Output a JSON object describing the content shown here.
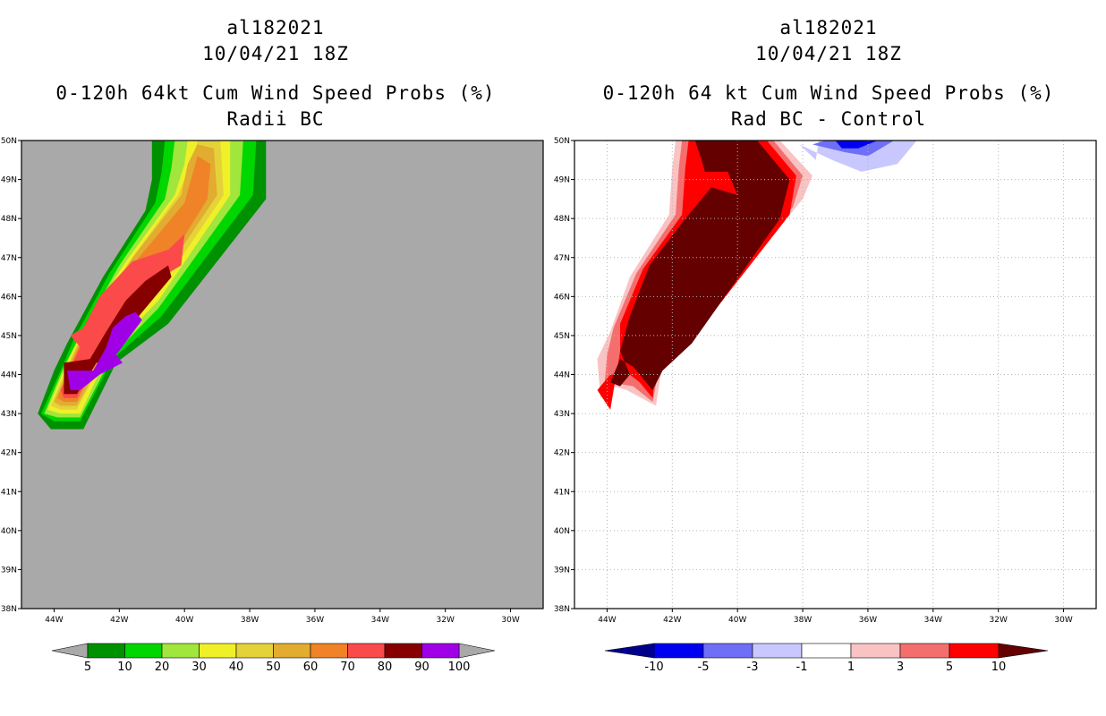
{
  "panels": [
    {
      "title_lines": [
        "al182021",
        "10/04/21 18Z",
        "0-120h 64kt Cum Wind Speed Probs (%)",
        "Radii BC"
      ],
      "background": "#a9a9a9",
      "grid": false,
      "colorbar": {
        "labels": [
          "5",
          "10",
          "20",
          "30",
          "40",
          "50",
          "60",
          "70",
          "80",
          "90",
          "100"
        ],
        "colors": [
          "#009100",
          "#00d600",
          "#a1e63c",
          "#f0f028",
          "#e5d23a",
          "#e1ac2f",
          "#f08228",
          "#fb4a4a",
          "#860000",
          "#a000e6"
        ],
        "left_triangle": "#a9a9a9",
        "right_triangle": "#a9a9a9"
      }
    },
    {
      "title_lines": [
        "al182021",
        "10/04/21 18Z",
        "0-120h 64 kt Cum Wind Speed Probs (%)",
        "Rad BC - Control"
      ],
      "background": "#ffffff",
      "grid": true,
      "colorbar": {
        "labels": [
          "-10",
          "-5",
          "-3",
          "-1",
          "1",
          "3",
          "5",
          "10"
        ],
        "colors": [
          "#0000f0",
          "#6e6ef6",
          "#c8c8ff",
          "#ffffff",
          "#fac3c3",
          "#f56e6e",
          "#ff0000"
        ],
        "left_triangle": "#00008c",
        "right_triangle": "#640000"
      }
    }
  ],
  "chart_data": [
    {
      "type": "contour-map",
      "title": "0-120h 64kt Cum Wind Speed Probs (%)",
      "subtitle": "Radii BC",
      "storm": "al182021",
      "datetime": "10/04/21 18Z",
      "x_ticks": [
        -44,
        -42,
        -40,
        -38,
        -36,
        -34,
        -32,
        -30
      ],
      "x_tick_labels": [
        "44W",
        "42W",
        "40W",
        "38W",
        "36W",
        "34W",
        "32W",
        "30W"
      ],
      "y_ticks": [
        38,
        39,
        40,
        41,
        42,
        43,
        44,
        45,
        46,
        47,
        48,
        49,
        50
      ],
      "y_tick_labels": [
        "38N",
        "39N",
        "40N",
        "41N",
        "42N",
        "43N",
        "44N",
        "45N",
        "46N",
        "47N",
        "48N",
        "49N",
        "50N"
      ],
      "xlim": [
        -45,
        -29
      ],
      "ylim": [
        38,
        50
      ],
      "levels": [
        5,
        10,
        20,
        30,
        40,
        50,
        60,
        70,
        80,
        90,
        100
      ],
      "contours": [
        {
          "level": 5,
          "polygon": [
            [
              -41,
              50
            ],
            [
              -37.5,
              50
            ],
            [
              -37.5,
              48.5
            ],
            [
              -40.5,
              45.3
            ],
            [
              -42.1,
              44.3
            ],
            [
              -43.1,
              42.6
            ],
            [
              -44.1,
              42.6
            ],
            [
              -44.5,
              43
            ],
            [
              -44,
              44.1
            ],
            [
              -43.6,
              44.8
            ],
            [
              -42.5,
              46.5
            ],
            [
              -41.2,
              48.2
            ],
            [
              -41,
              49
            ]
          ]
        },
        {
          "level": 10,
          "polygon": [
            [
              -40.6,
              50
            ],
            [
              -37.8,
              50
            ],
            [
              -37.9,
              48.6
            ],
            [
              -40.7,
              45.5
            ],
            [
              -42.2,
              44.4
            ],
            [
              -43.2,
              42.8
            ],
            [
              -44,
              42.8
            ],
            [
              -44.4,
              43
            ],
            [
              -43.8,
              44.1
            ],
            [
              -43.4,
              44.9
            ],
            [
              -42.3,
              46.6
            ],
            [
              -40.9,
              48.4
            ],
            [
              -40.7,
              49.2
            ]
          ]
        },
        {
          "level": 20,
          "polygon": [
            [
              -40.3,
              50
            ],
            [
              -38.2,
              50
            ],
            [
              -38.3,
              48.6
            ],
            [
              -40.8,
              45.7
            ],
            [
              -42.2,
              44.5
            ],
            [
              -43.2,
              42.9
            ],
            [
              -43.9,
              42.9
            ],
            [
              -44.3,
              43
            ],
            [
              -43.7,
              44.2
            ],
            [
              -43.2,
              45
            ],
            [
              -42,
              46.8
            ],
            [
              -40.6,
              48.5
            ],
            [
              -40.4,
              49.3
            ]
          ]
        },
        {
          "level": 30,
          "polygon": [
            [
              -39.9,
              50
            ],
            [
              -38.6,
              50
            ],
            [
              -38.6,
              48.6
            ],
            [
              -40.8,
              45.9
            ],
            [
              -42.3,
              44.6
            ],
            [
              -43.2,
              43
            ],
            [
              -43.8,
              43
            ],
            [
              -44.2,
              43.1
            ],
            [
              -43.6,
              44.3
            ],
            [
              -43.1,
              45.2
            ],
            [
              -41.8,
              46.9
            ],
            [
              -40.3,
              48.6
            ],
            [
              -40,
              49.4
            ]
          ]
        },
        {
          "level": 40,
          "polygon": [
            [
              -39.6,
              50
            ],
            [
              -38.9,
              50
            ],
            [
              -38.8,
              48.6
            ],
            [
              -40.9,
              46
            ],
            [
              -42.3,
              44.7
            ],
            [
              -43.3,
              43.1
            ],
            [
              -43.8,
              43.1
            ],
            [
              -44.1,
              43.2
            ],
            [
              -43.5,
              44.4
            ],
            [
              -43,
              45.3
            ],
            [
              -41.6,
              47
            ],
            [
              -40.2,
              48.6
            ],
            [
              -39.8,
              49.4
            ]
          ]
        },
        {
          "level": 50,
          "polygon": [
            [
              -39.6,
              49.9
            ],
            [
              -39.1,
              49.8
            ],
            [
              -39,
              48.6
            ],
            [
              -41,
              46.1
            ],
            [
              -42.3,
              44.7
            ],
            [
              -43.3,
              43.2
            ],
            [
              -43.8,
              43.2
            ],
            [
              -44,
              43.3
            ],
            [
              -43.4,
              44.5
            ],
            [
              -42.9,
              45.4
            ],
            [
              -41.5,
              47.1
            ],
            [
              -40.1,
              48.6
            ],
            [
              -39.9,
              49.4
            ]
          ]
        },
        {
          "level": 60,
          "polygon": [
            [
              -39.6,
              49.6
            ],
            [
              -39.2,
              49.4
            ],
            [
              -39.3,
              48.5
            ],
            [
              -41,
              46.2
            ],
            [
              -42.4,
              44.8
            ],
            [
              -43.3,
              43.3
            ],
            [
              -43.7,
              43.3
            ],
            [
              -43.9,
              43.4
            ],
            [
              -43.3,
              44.6
            ],
            [
              -42.8,
              45.6
            ],
            [
              -41.4,
              47
            ],
            [
              -40,
              48.4
            ]
          ]
        },
        {
          "level": 70,
          "polygon": [
            [
              -40,
              47.6
            ],
            [
              -40.1,
              46.8
            ],
            [
              -40.9,
              46.4
            ],
            [
              -42.4,
              44.8
            ],
            [
              -43.3,
              43.4
            ],
            [
              -43.7,
              43.4
            ],
            [
              -43.8,
              43.6
            ],
            [
              -43.2,
              44.7
            ],
            [
              -43.5,
              45
            ],
            [
              -43.1,
              45.2
            ],
            [
              -42.6,
              46
            ],
            [
              -41.6,
              46.9
            ],
            [
              -40.5,
              47.2
            ]
          ]
        },
        {
          "level": 80,
          "polygon": [
            [
              -40.5,
              46.8
            ],
            [
              -40.4,
              46.5
            ],
            [
              -41.4,
              45.5
            ],
            [
              -42.2,
              44.6
            ],
            [
              -42,
              44.4
            ],
            [
              -42.7,
              44.3
            ],
            [
              -43.3,
              43.5
            ],
            [
              -43.7,
              43.5
            ],
            [
              -43.7,
              44.3
            ],
            [
              -42.9,
              44.4
            ],
            [
              -42.4,
              45.1
            ],
            [
              -41.8,
              45.9
            ],
            [
              -41.2,
              46.4
            ]
          ]
        },
        {
          "level": 90,
          "polygon": [
            [
              -41.5,
              45.6
            ],
            [
              -41.3,
              45.4
            ],
            [
              -42.1,
              44.5
            ],
            [
              -41.9,
              44.3
            ],
            [
              -42.6,
              44
            ],
            [
              -42.9,
              43.8
            ],
            [
              -43.2,
              43.6
            ],
            [
              -43.5,
              43.6
            ],
            [
              -43.6,
              44.1
            ],
            [
              -42.8,
              44.1
            ],
            [
              -42.4,
              44.7
            ],
            [
              -42.2,
              45.2
            ],
            [
              -41.8,
              45.5
            ]
          ]
        }
      ]
    },
    {
      "type": "contour-map",
      "title": "0-120h 64 kt Cum Wind Speed Probs (%)",
      "subtitle": "Rad BC - Control",
      "storm": "al182021",
      "datetime": "10/04/21 18Z",
      "x_ticks": [
        -44,
        -42,
        -40,
        -38,
        -36,
        -34,
        -32,
        -30
      ],
      "x_tick_labels": [
        "44W",
        "42W",
        "40W",
        "38W",
        "36W",
        "34W",
        "32W",
        "30W"
      ],
      "y_ticks": [
        38,
        39,
        40,
        41,
        42,
        43,
        44,
        45,
        46,
        47,
        48,
        49,
        50
      ],
      "y_tick_labels": [
        "38N",
        "39N",
        "40N",
        "41N",
        "42N",
        "43N",
        "44N",
        "45N",
        "46N",
        "47N",
        "48N",
        "49N",
        "50N"
      ],
      "xlim": [
        -45,
        -29
      ],
      "ylim": [
        38,
        50
      ],
      "levels": [
        -10,
        -5,
        -3,
        -1,
        1,
        3,
        5,
        10
      ],
      "contours": [
        {
          "level": 1,
          "polygon": [
            [
              -41.9,
              50
            ],
            [
              -38.7,
              50
            ],
            [
              -37.7,
              49.1
            ],
            [
              -38,
              48.5
            ],
            [
              -41.1,
              45.4
            ],
            [
              -42.3,
              44.3
            ],
            [
              -42.5,
              43.2
            ],
            [
              -43.4,
              43.6
            ],
            [
              -43.8,
              43.7
            ],
            [
              -44.2,
              43.4
            ],
            [
              -44.3,
              44.4
            ],
            [
              -43.9,
              45.1
            ],
            [
              -43.3,
              46.5
            ],
            [
              -42.1,
              48.1
            ],
            [
              -42,
              49.3
            ]
          ]
        },
        {
          "level": 3,
          "polygon": [
            [
              -41.7,
              50
            ],
            [
              -38.9,
              50
            ],
            [
              -38,
              49.1
            ],
            [
              -38.3,
              48.3
            ],
            [
              -41.2,
              45.2
            ],
            [
              -42.4,
              44.2
            ],
            [
              -42.6,
              43.3
            ],
            [
              -43.2,
              43.7
            ],
            [
              -43.9,
              43.8
            ],
            [
              -44.1,
              43.5
            ],
            [
              -44,
              44.5
            ],
            [
              -43.8,
              45.2
            ],
            [
              -43.1,
              46.6
            ],
            [
              -41.9,
              48.1
            ],
            [
              -41.8,
              49.3
            ]
          ]
        },
        {
          "level": 5,
          "polygon": [
            [
              -41.5,
              50
            ],
            [
              -39.1,
              50
            ],
            [
              -38.2,
              49.1
            ],
            [
              -38.4,
              48.1
            ],
            [
              -41.3,
              45
            ],
            [
              -42.5,
              44.2
            ],
            [
              -42.6,
              43.4
            ],
            [
              -43,
              43.8
            ],
            [
              -43.3,
              44
            ],
            [
              -43.9,
              44
            ],
            [
              -44.3,
              43.6
            ],
            [
              -43.9,
              43.1
            ],
            [
              -43.6,
              44.6
            ],
            [
              -43.6,
              45.3
            ],
            [
              -42.9,
              46.7
            ],
            [
              -41.7,
              48.1
            ],
            [
              -41.6,
              49.3
            ]
          ]
        },
        {
          "level": 10,
          "polygon": [
            [
              -41.3,
              50
            ],
            [
              -39.4,
              50
            ],
            [
              -38.4,
              49
            ],
            [
              -38.7,
              48
            ],
            [
              -41.4,
              44.8
            ],
            [
              -42.3,
              44.1
            ],
            [
              -42.6,
              43.6
            ],
            [
              -42.9,
              43.9
            ],
            [
              -43.2,
              44.2
            ],
            [
              -43.6,
              44.4
            ],
            [
              -43.9,
              43.8
            ],
            [
              -43.6,
              43.7
            ],
            [
              -43.3,
              44
            ],
            [
              -43.6,
              44.6
            ],
            [
              -43.3,
              45.5
            ],
            [
              -42.7,
              46.8
            ],
            [
              -41.6,
              48
            ],
            [
              -40.8,
              48.8
            ],
            [
              -40,
              48.6
            ],
            [
              -40.3,
              49.2
            ],
            [
              -41,
              49.2
            ],
            [
              -41.1,
              49.5
            ]
          ]
        },
        {
          "level": -3,
          "polygon": [
            [
              -37.5,
              50
            ],
            [
              -34.5,
              50
            ],
            [
              -35.1,
              49.4
            ],
            [
              -36.2,
              49.2
            ],
            [
              -37.1,
              49.5
            ],
            [
              -38.1,
              49.9
            ],
            [
              -37.6,
              49.5
            ]
          ]
        },
        {
          "level": -5,
          "polygon": [
            [
              -37.3,
              50
            ],
            [
              -35.2,
              50
            ],
            [
              -36,
              49.6
            ],
            [
              -36.7,
              49.7
            ],
            [
              -37.7,
              49.9
            ]
          ]
        },
        {
          "level": -10,
          "polygon": [
            [
              -37,
              50
            ],
            [
              -35.7,
              50
            ],
            [
              -36.3,
              49.8
            ],
            [
              -36.8,
              49.8
            ]
          ]
        }
      ]
    }
  ]
}
